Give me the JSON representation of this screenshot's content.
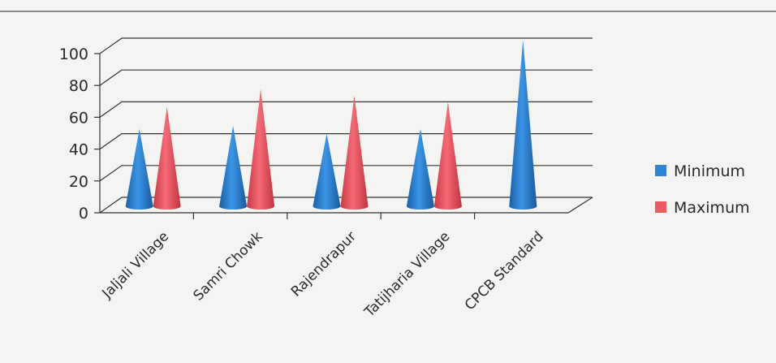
{
  "chart_data": {
    "type": "bar",
    "categories": [
      "Jaljali Village",
      "Samri Chowk",
      "Rajendrapur",
      "Tatijharia Village",
      "CPCB Standard"
    ],
    "series": [
      {
        "name": "Minimum",
        "values": [
          44,
          46,
          41,
          44,
          100
        ],
        "color": "#2f86d8"
      },
      {
        "name": "Maximum",
        "values": [
          58,
          69,
          65,
          61,
          null
        ],
        "color": "#ee5a64"
      }
    ],
    "title": "",
    "xlabel": "",
    "ylabel": "",
    "ylim": [
      0,
      100
    ],
    "yticks": [
      0,
      20,
      40,
      60,
      80,
      100
    ],
    "grid": true,
    "legend_position": "right",
    "style": "3d-cone"
  }
}
